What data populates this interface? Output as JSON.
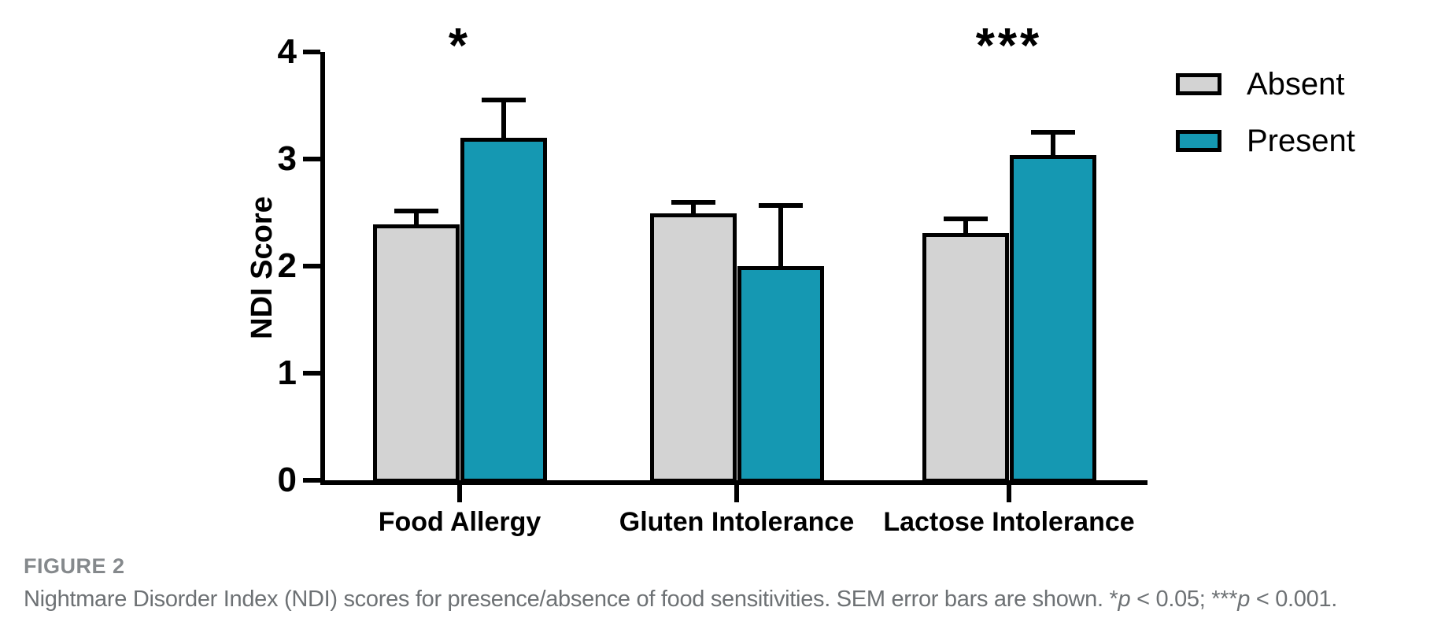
{
  "figure": {
    "label": "FIGURE 2",
    "caption_segments": [
      {
        "text": "Nightmare Disorder Index (NDI) scores for presence/absence of food sensitivities. SEM error bars are shown. *",
        "italic": false
      },
      {
        "text": "p",
        "italic": true
      },
      {
        "text": " < 0.05; ***",
        "italic": false
      },
      {
        "text": "p",
        "italic": true
      },
      {
        "text": " < 0.001.",
        "italic": false
      }
    ]
  },
  "chart_data": {
    "type": "bar",
    "title": "",
    "xlabel": "",
    "ylabel": "NDI Score",
    "ylim": [
      0,
      4
    ],
    "yticks": [
      0,
      1,
      2,
      3,
      4
    ],
    "grid": false,
    "legend_position": "top-right",
    "error_bars": "SEM, upper side only",
    "categories": [
      "Food Allergy",
      "Gluten Intolerance",
      "Lactose Intolerance"
    ],
    "series": [
      {
        "name": "Absent",
        "color": "#d3d3d3",
        "values": [
          2.39,
          2.49,
          2.31
        ],
        "sem": [
          0.13,
          0.11,
          0.14
        ]
      },
      {
        "name": "Present",
        "color": "#1598b2",
        "values": [
          3.2,
          2.0,
          3.04
        ],
        "sem": [
          0.36,
          0.57,
          0.22
        ]
      }
    ],
    "significance": [
      {
        "category": "Food Allergy",
        "marker": "*"
      },
      {
        "category": "Lactose Intolerance",
        "marker": "***"
      }
    ]
  }
}
